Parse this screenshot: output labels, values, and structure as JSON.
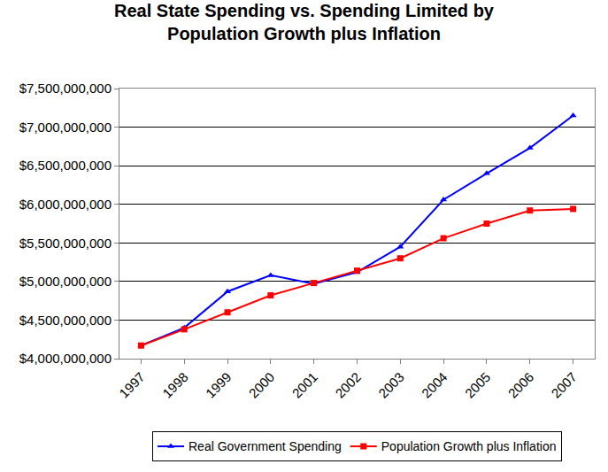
{
  "chart_data": {
    "type": "line",
    "title": "Real State Spending vs. Spending Limited by\nPopulation Growth plus Inflation",
    "categories": [
      "1997",
      "1998",
      "1999",
      "2000",
      "2001",
      "2002",
      "2003",
      "2004",
      "2005",
      "2006",
      "2007"
    ],
    "series": [
      {
        "name": "Real Government Spending",
        "color": "#0000ff",
        "marker": "triangle-up",
        "values": [
          4170000000,
          4400000000,
          4870000000,
          5080000000,
          4970000000,
          5120000000,
          5450000000,
          6060000000,
          6400000000,
          6730000000,
          7150000000
        ]
      },
      {
        "name": "Population Growth plus Inflation",
        "color": "#ff0000",
        "marker": "square",
        "values": [
          4170000000,
          4380000000,
          4600000000,
          4820000000,
          4980000000,
          5140000000,
          5300000000,
          5560000000,
          5750000000,
          5920000000,
          5940000000
        ]
      }
    ],
    "ylim": [
      4000000000,
      7500000000
    ],
    "yticks": [
      {
        "value": 4000000000,
        "label": "$4,000,000,000"
      },
      {
        "value": 4500000000,
        "label": "$4,500,000,000"
      },
      {
        "value": 5000000000,
        "label": "$5,000,000,000"
      },
      {
        "value": 5500000000,
        "label": "$5,500,000,000"
      },
      {
        "value": 6000000000,
        "label": "$6,000,000,000"
      },
      {
        "value": 6500000000,
        "label": "$6,500,000,000"
      },
      {
        "value": 7000000000,
        "label": "$7,000,000,000"
      },
      {
        "value": 7500000000,
        "label": "$7,500,000,000"
      }
    ],
    "grid": true,
    "legend": "bottom"
  }
}
